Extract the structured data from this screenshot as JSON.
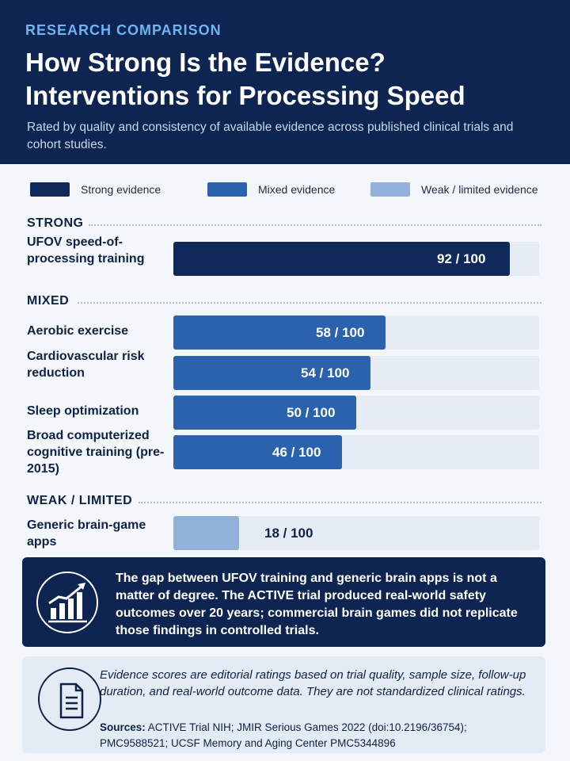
{
  "header": {
    "kicker": "RESEARCH COMPARISON",
    "title": "How Strong Is the Evidence? Interventions for Processing Speed",
    "subtitle": "Rated by quality and consistency of available evidence across published clinical trials and cohort studies."
  },
  "colors": {
    "header_bg": "#0d2550",
    "strong": "#0f2a5a",
    "mixed": "#2a62ad",
    "weak": "#8fb1da",
    "track": "#e5ebf3",
    "accent": "#6fb3f2"
  },
  "legend": [
    {
      "label": "Strong evidence",
      "tier": "strong"
    },
    {
      "label": "Mixed evidence",
      "tier": "mixed"
    },
    {
      "label": "Weak / limited evidence",
      "tier": "weak"
    }
  ],
  "chart_data": {
    "type": "bar",
    "orientation": "horizontal",
    "xlim": [
      0,
      100
    ],
    "value_suffix": " / 100",
    "groups": [
      {
        "name": "STRONG",
        "tier": "strong",
        "items": [
          {
            "label": "UFOV speed-of-processing training",
            "value": 92
          }
        ]
      },
      {
        "name": "MIXED",
        "tier": "mixed",
        "items": [
          {
            "label": "Aerobic exercise",
            "value": 58
          },
          {
            "label": "Cardiovascular risk reduction",
            "value": 54
          },
          {
            "label": "Sleep optimization",
            "value": 50
          },
          {
            "label": "Broad computerized cognitive training (pre-2015)",
            "value": 46
          }
        ]
      },
      {
        "name": "WEAK / LIMITED",
        "tier": "weak",
        "items": [
          {
            "label": "Generic brain-game apps",
            "value": 18
          }
        ]
      }
    ]
  },
  "callout": {
    "icon": "trend-chart-icon",
    "text": "The gap between UFOV training and generic brain apps is not a matter of degree. The ACTIVE trial produced real-world safety outcomes over 20 years; commercial brain games did not replicate those findings in controlled trials."
  },
  "note": {
    "icon": "document-icon",
    "text": "Evidence scores are editorial ratings based on trial quality, sample size, follow-up duration, and real-world outcome data. They are not standardized clinical ratings.",
    "sources_label": "Sources:",
    "sources_text": "ACTIVE Trial NIH; JMIR Serious Games 2022 (doi:10.2196/36754); PMC9588521; UCSF Memory and Aging Center PMC5344896"
  }
}
